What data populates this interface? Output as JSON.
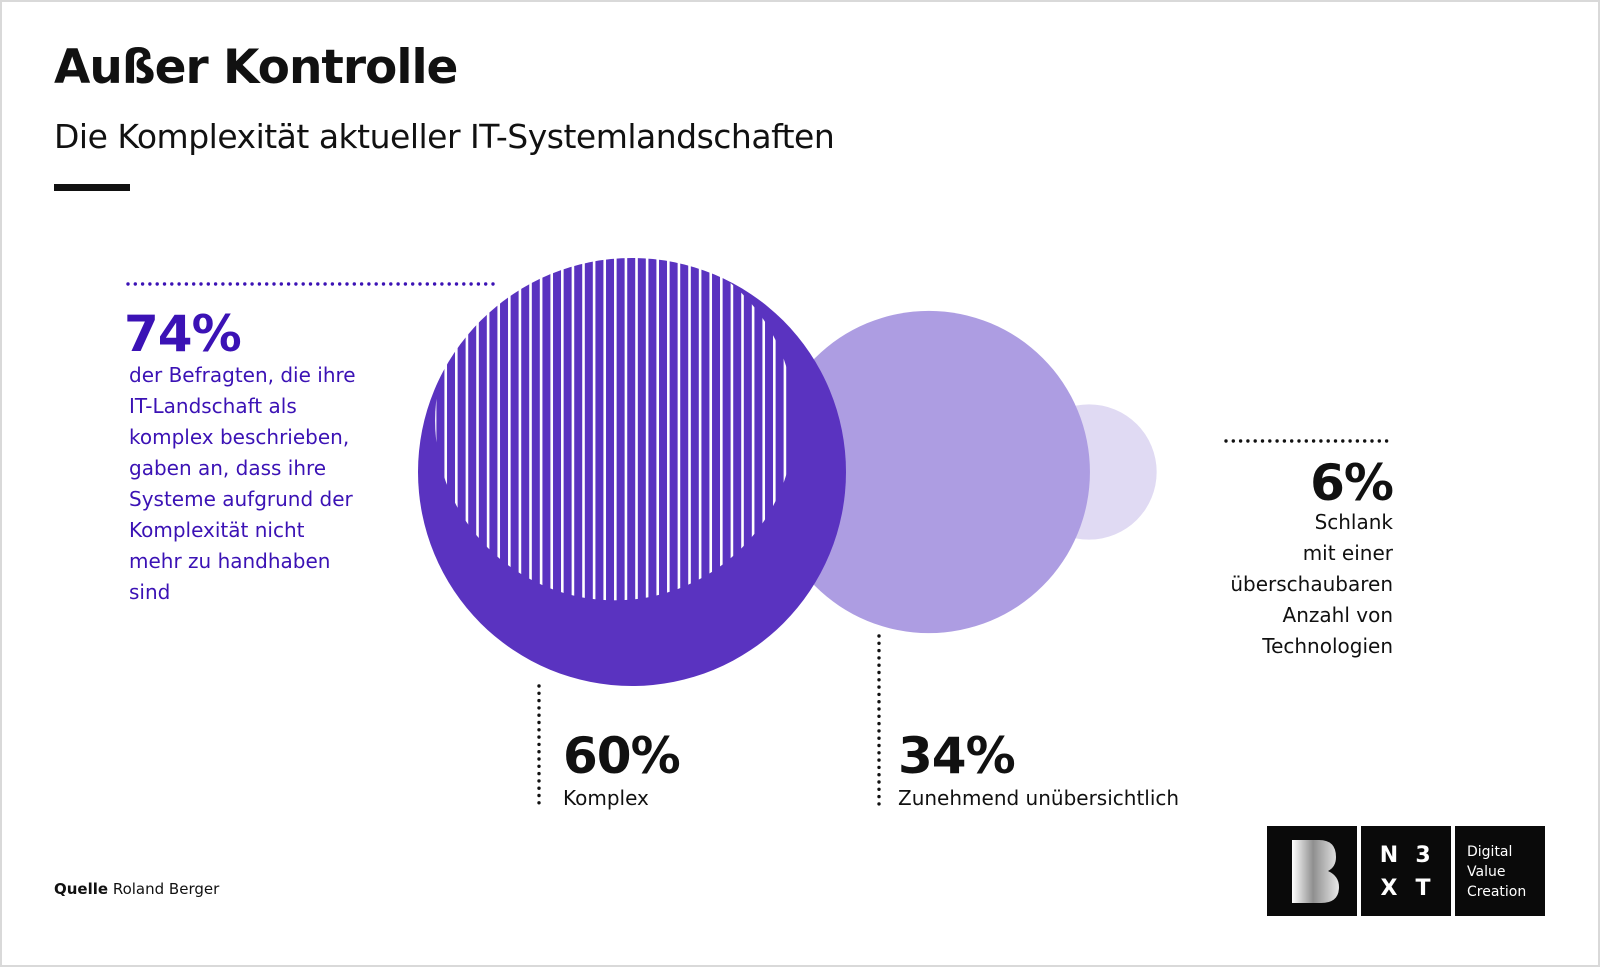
{
  "title": "Außer Kontrolle",
  "subtitle": "Die Komplexität aktueller IT-Systemlandschaften",
  "source_label": "Quelle",
  "source_value": "Roland Berger",
  "logo": {
    "nxt": [
      "N",
      "3",
      "X",
      "T"
    ],
    "tagline": [
      "Digital",
      "Value",
      "Creation"
    ]
  },
  "colors": {
    "dark": "#5a33c0",
    "medium": "#ad9de2",
    "light": "#e0daf3",
    "highlight": "#3b12b5"
  },
  "chart_data": {
    "type": "bubble",
    "title": "Außer Kontrolle",
    "subtitle": "Die Komplexität aktueller IT-Systemlandschaften",
    "series": [
      {
        "name": "Komplex",
        "value": 60,
        "label": "60%",
        "color": "#5a33c0"
      },
      {
        "name": "Zunehmend unübersichtlich",
        "value": 34,
        "label": "34%",
        "color": "#ad9de2"
      },
      {
        "name": "Schlank mit einer überschaubaren Anzahl von Technologien",
        "value": 6,
        "label": "6%",
        "color": "#e0daf3"
      }
    ],
    "highlight": {
      "value": 74,
      "label": "74%",
      "text": [
        "der Befragten, die ihre",
        "IT-Landschaft als",
        "komplex beschrieben,",
        "gaben an, dass ihre",
        "Systeme aufgrund der",
        "Komplexität nicht",
        "mehr zu handhaben",
        "sind"
      ]
    },
    "callouts": {
      "komplex": {
        "pct": "60%",
        "text": "Komplex"
      },
      "unuebersichtlich": {
        "pct": "34%",
        "text": "Zunehmend unübersichtlich"
      },
      "schlank": {
        "pct": "6%",
        "lines": [
          "Schlank",
          "mit einer",
          "überschaubaren",
          "Anzahl von",
          "Technologien"
        ]
      }
    }
  }
}
